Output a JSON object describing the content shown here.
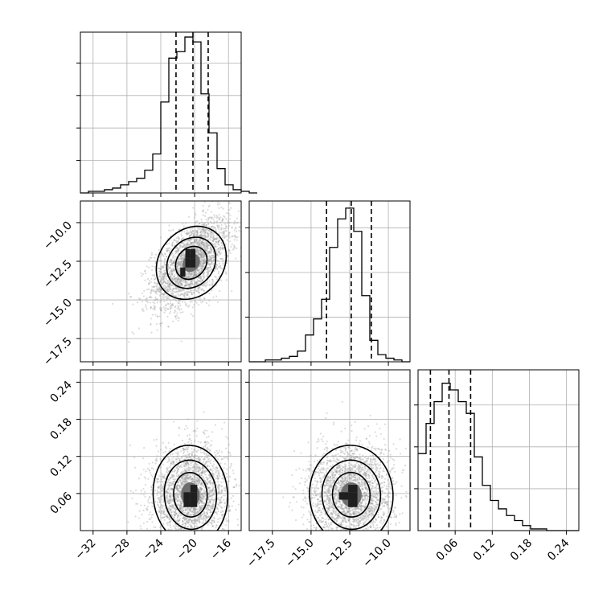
{
  "chart_data": {
    "type": "corner",
    "title": "",
    "grid": true,
    "parameters": [
      {
        "range": [
          -33.5,
          -14.5
        ],
        "ticks": [
          -32,
          -28,
          -24,
          -20,
          -16
        ],
        "tick_labels": [
          "−32",
          "−28",
          "−24",
          "−20",
          "−16"
        ],
        "quantiles": [
          -22.2,
          -20.2,
          -18.4
        ],
        "hist_edges_start": -33.5,
        "hist_bin_width": 0.95,
        "hist_counts": [
          0,
          1,
          1,
          2,
          3,
          5,
          7,
          9,
          14,
          24,
          56,
          83,
          87,
          96,
          93,
          61,
          37,
          15,
          5,
          2,
          1,
          0
        ]
      },
      {
        "range": [
          -19.0,
          -8.6
        ],
        "ticks": [
          -17.5,
          -15.0,
          -12.5,
          -10.0
        ],
        "tick_labels": [
          "−17.5",
          "−15.0",
          "−12.5",
          "−10.0"
        ],
        "quantiles": [
          -14.0,
          -12.4,
          -11.1
        ],
        "hist_edges_start": -19.0,
        "hist_bin_width": 0.52,
        "hist_counts": [
          0,
          0,
          1,
          1,
          2,
          3,
          6,
          15,
          24,
          35,
          64,
          80,
          86,
          73,
          37,
          12,
          4,
          2,
          1,
          0
        ]
      },
      {
        "range": [
          0.0,
          0.26
        ],
        "ticks": [
          0.06,
          0.12,
          0.18,
          0.24
        ],
        "tick_labels": [
          "0.06",
          "0.12",
          "0.18",
          "0.24"
        ],
        "quantiles": [
          0.02,
          0.05,
          0.085
        ],
        "hist_edges_start": 0.0,
        "hist_bin_width": 0.013,
        "hist_counts": [
          46,
          64,
          77,
          88,
          84,
          77,
          70,
          44,
          27,
          18,
          13,
          9,
          6,
          3,
          1,
          1,
          0,
          0,
          0,
          0
        ]
      }
    ],
    "hist_yticks": [
      [
        20,
        40,
        60,
        80
      ],
      [
        25,
        50,
        75
      ],
      [
        25,
        50,
        75
      ]
    ],
    "hist_ymax": [
      99,
      90,
      96
    ],
    "scatter_panels": [
      {
        "x_param": 0,
        "y_param": 1,
        "mean": [
          -20.4,
          -12.6
        ],
        "sd": [
          2.3,
          1.45
        ],
        "rho": 0.55,
        "n_points": 2600,
        "dense_cells": [
          [
            -20.8,
            -12.0
          ],
          [
            -20.2,
            -12.0
          ],
          [
            -20.8,
            -12.6
          ],
          [
            -20.2,
            -12.6
          ],
          [
            -21.4,
            -13.2
          ]
        ],
        "dense_cell_size": [
          0.6,
          0.6
        ]
      },
      {
        "x_param": 0,
        "y_param": 2,
        "mean": [
          -20.5,
          0.058
        ],
        "sd": [
          2.2,
          0.04
        ],
        "rho": 0.05,
        "n_points": 2600,
        "dense_cells": [
          [
            -20.1,
            0.068
          ],
          [
            -20.1,
            0.056
          ],
          [
            -20.9,
            0.056
          ],
          [
            -20.9,
            0.044
          ],
          [
            -20.1,
            0.044
          ]
        ],
        "dense_cell_size": [
          0.8,
          0.012
        ]
      },
      {
        "x_param": 1,
        "y_param": 2,
        "mean": [
          -12.4,
          0.058
        ],
        "sd": [
          1.35,
          0.04
        ],
        "rho": 0.05,
        "n_points": 2600,
        "dense_cells": [
          [
            -12.3,
            0.068
          ],
          [
            -12.3,
            0.056
          ],
          [
            -12.9,
            0.056
          ],
          [
            -12.3,
            0.044
          ]
        ],
        "dense_cell_size": [
          0.6,
          0.012
        ]
      }
    ]
  }
}
